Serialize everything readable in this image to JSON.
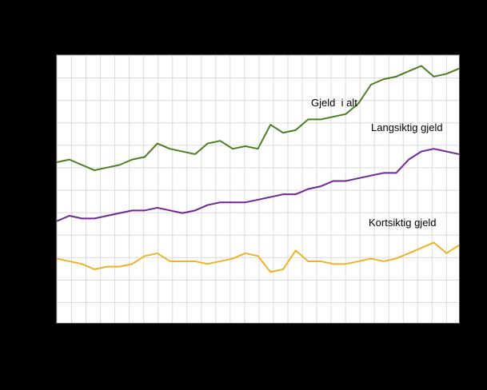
{
  "background_color": "#000000",
  "plot": {
    "background": "#ffffff",
    "grid_color": "#d9d9d9",
    "border_color": "#595959"
  },
  "labels": {
    "total": "Gjeld  i alt",
    "long_term": "Langsiktig gjeld",
    "short_term": "Kortsiktig gjeld"
  },
  "chart_data": {
    "type": "line",
    "title": "",
    "xlabel": "",
    "ylabel": "",
    "x_count": 33,
    "ylim": [
      0,
      100
    ],
    "grid": true,
    "legend_position": "inline-labels",
    "note": "Axis tick labels are not visible in the screenshot (black-on-black margins); series values estimated on a 0-100 relative scale from pixel positions, 0 = bottom of plot, 100 = top.",
    "series": [
      {
        "key": "total",
        "name": "Gjeld i alt",
        "color": "#4a7e21",
        "values": [
          60,
          61,
          59,
          57,
          58,
          59,
          61,
          62,
          67,
          65,
          64,
          63,
          67,
          68,
          65,
          66,
          65,
          74,
          71,
          72,
          76,
          76,
          77,
          78,
          82,
          89,
          91,
          92,
          94,
          96,
          92,
          93,
          95
        ]
      },
      {
        "key": "long-term",
        "name": "Langsiktig gjeld",
        "color": "#6f2595",
        "values": [
          38,
          40,
          39,
          39,
          40,
          41,
          42,
          42,
          43,
          42,
          41,
          42,
          44,
          45,
          45,
          45,
          46,
          47,
          48,
          48,
          50,
          51,
          53,
          53,
          54,
          55,
          56,
          56,
          61,
          64,
          65,
          64,
          63
        ]
      },
      {
        "key": "short-term",
        "name": "Kortsiktig gjeld",
        "color": "#efb322",
        "values": [
          24,
          23,
          22,
          20,
          21,
          21,
          22,
          25,
          26,
          23,
          23,
          23,
          22,
          23,
          24,
          26,
          25,
          19,
          20,
          27,
          23,
          23,
          22,
          22,
          23,
          24,
          23,
          24,
          26,
          28,
          30,
          26,
          29
        ]
      }
    ]
  }
}
